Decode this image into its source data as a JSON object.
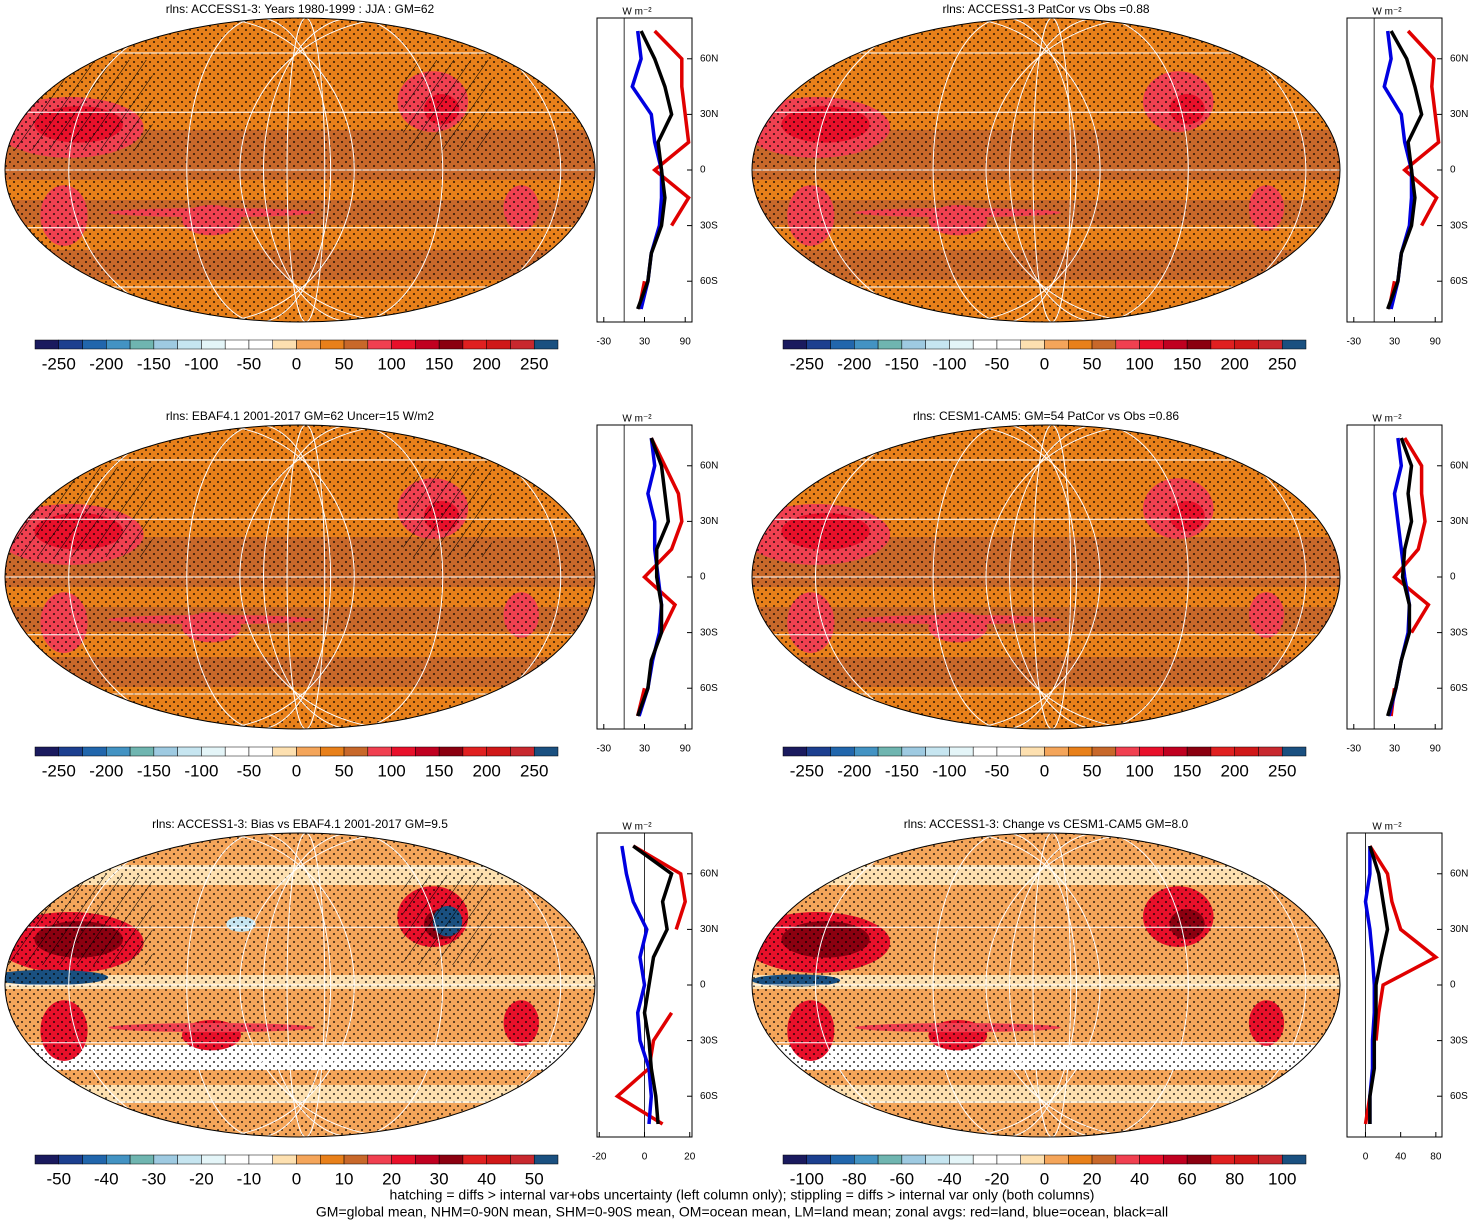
{
  "chart_data": [
    {
      "type": "map",
      "title": "rlns: ACCESS1-3: Years 1980-1999 : JJA : GM=62",
      "colorbar": {
        "clim": [
          -275,
          275
        ],
        "ticks": [
          -250,
          -200,
          -150,
          -100,
          -50,
          0,
          50,
          100,
          150,
          200,
          250
        ],
        "colors": [
          "#1a1a5e",
          "#1c3f8f",
          "#2166ac",
          "#4393c3",
          "#6fb5b0",
          "#9ecae1",
          "#c6e5f0",
          "#e4f5f8",
          "#ffffff",
          "#ffffff",
          "#fde0b0",
          "#f4a55a",
          "#e8801a",
          "#c8682a",
          "#f04050",
          "#e8102a",
          "#c00020",
          "#8b0010",
          "#e02020",
          "#d01818",
          "#c8282e",
          "#1a5080"
        ]
      },
      "zonal": {
        "type": "line",
        "label": "W m⁻²",
        "xlim": [
          -40,
          100
        ],
        "xticks": [
          -30,
          30,
          90
        ],
        "ylim": [
          -82,
          82
        ],
        "yticks": [
          {
            "value": 60,
            "label": "60N"
          },
          {
            "value": 30,
            "label": "30N"
          },
          0,
          {
            "value": -30,
            "label": "30S"
          },
          {
            "value": -60,
            "label": "60S"
          }
        ],
        "y": [
          -75,
          -60,
          -45,
          -30,
          -15,
          0,
          15,
          30,
          45,
          60,
          75
        ],
        "series": [
          {
            "color": "#e00000",
            "values": [
              22,
              30,
              null,
              70,
              95,
              45,
              95,
              90,
              85,
              85,
              45
            ]
          },
          {
            "color": "#0000e0",
            "values": [
              25,
              35,
              40,
              52,
              55,
              55,
              45,
              40,
              12,
              25,
              20
            ]
          },
          {
            "color": "#000000",
            "values": [
              20,
              35,
              40,
              55,
              60,
              55,
              50,
              70,
              60,
              45,
              25
            ]
          }
        ]
      }
    },
    {
      "type": "map",
      "title": "rlns: ACCESS1-3 PatCor vs Obs =0.88",
      "colorbar": {
        "clim": [
          -275,
          275
        ],
        "ticks": [
          -250,
          -200,
          -150,
          -100,
          -50,
          0,
          50,
          100,
          150,
          200,
          250
        ],
        "colors": [
          "#1a1a5e",
          "#1c3f8f",
          "#2166ac",
          "#4393c3",
          "#6fb5b0",
          "#9ecae1",
          "#c6e5f0",
          "#e4f5f8",
          "#ffffff",
          "#ffffff",
          "#fde0b0",
          "#f4a55a",
          "#e8801a",
          "#c8682a",
          "#f04050",
          "#e8102a",
          "#c00020",
          "#8b0010",
          "#e02020",
          "#d01818",
          "#c8282e",
          "#1a5080"
        ]
      },
      "zonal": {
        "type": "line",
        "label": "W m⁻²",
        "xlim": [
          -40,
          100
        ],
        "xticks": [
          -30,
          30,
          90
        ],
        "ylim": [
          -82,
          82
        ],
        "yticks": [
          {
            "value": 60,
            "label": "60N"
          },
          {
            "value": 30,
            "label": "30N"
          },
          0,
          {
            "value": -30,
            "label": "30S"
          },
          {
            "value": -60,
            "label": "60S"
          }
        ],
        "y": [
          -75,
          -60,
          -45,
          -30,
          -15,
          0,
          15,
          30,
          45,
          60,
          75
        ],
        "series": [
          {
            "color": "#e00000",
            "values": [
              22,
              30,
              null,
              70,
              92,
              45,
              95,
              90,
              85,
              88,
              50
            ]
          },
          {
            "color": "#0000e0",
            "values": [
              25,
              35,
              40,
              52,
              55,
              55,
              45,
              40,
              15,
              25,
              20
            ]
          },
          {
            "color": "#000000",
            "values": [
              20,
              35,
              40,
              55,
              60,
              55,
              50,
              70,
              60,
              48,
              25
            ]
          }
        ]
      }
    },
    {
      "type": "map",
      "title": "rlns: EBAF4.1 2001-2017 GM=62 Uncer=15 W/m2",
      "colorbar": {
        "clim": [
          -275,
          275
        ],
        "ticks": [
          -250,
          -200,
          -150,
          -100,
          -50,
          0,
          50,
          100,
          150,
          200,
          250
        ],
        "colors": [
          "#1a1a5e",
          "#1c3f8f",
          "#2166ac",
          "#4393c3",
          "#6fb5b0",
          "#9ecae1",
          "#c6e5f0",
          "#e4f5f8",
          "#ffffff",
          "#ffffff",
          "#fde0b0",
          "#f4a55a",
          "#e8801a",
          "#c8682a",
          "#f04050",
          "#e8102a",
          "#c00020",
          "#8b0010",
          "#e02020",
          "#d01818",
          "#c8282e",
          "#1a5080"
        ]
      },
      "zonal": {
        "type": "line",
        "label": "W m⁻²",
        "xlim": [
          -40,
          100
        ],
        "xticks": [
          -30,
          30,
          90
        ],
        "ylim": [
          -82,
          82
        ],
        "yticks": [
          {
            "value": 60,
            "label": "60N"
          },
          {
            "value": 30,
            "label": "30N"
          },
          0,
          {
            "value": -30,
            "label": "30S"
          },
          {
            "value": -60,
            "label": "60S"
          }
        ],
        "y": [
          -75,
          -60,
          -45,
          -30,
          -15,
          0,
          15,
          30,
          45,
          60,
          75
        ],
        "series": [
          {
            "color": "#e00000",
            "values": [
              20,
              30,
              null,
              55,
              75,
              30,
              70,
              85,
              80,
              60,
              40
            ]
          },
          {
            "color": "#0000e0",
            "values": [
              22,
              35,
              42,
              52,
              55,
              50,
              45,
              45,
              35,
              45,
              40
            ]
          },
          {
            "color": "#000000",
            "values": [
              20,
              35,
              40,
              55,
              55,
              48,
              48,
              65,
              60,
              55,
              40
            ]
          }
        ]
      }
    },
    {
      "type": "map",
      "title": "rlns: CESM1-CAM5: GM=54 PatCor vs Obs =0.86",
      "colorbar": {
        "clim": [
          -275,
          275
        ],
        "ticks": [
          -250,
          -200,
          -150,
          -100,
          -50,
          0,
          50,
          100,
          150,
          200,
          250
        ],
        "colors": [
          "#1a1a5e",
          "#1c3f8f",
          "#2166ac",
          "#4393c3",
          "#6fb5b0",
          "#9ecae1",
          "#c6e5f0",
          "#e4f5f8",
          "#ffffff",
          "#ffffff",
          "#fde0b0",
          "#f4a55a",
          "#e8801a",
          "#c8682a",
          "#f04050",
          "#e8102a",
          "#c00020",
          "#8b0010",
          "#e02020",
          "#d01818",
          "#c8282e",
          "#1a5080"
        ]
      },
      "zonal": {
        "type": "line",
        "label": "W m⁻²",
        "xlim": [
          -40,
          100
        ],
        "xticks": [
          -30,
          30,
          90
        ],
        "ylim": [
          -82,
          82
        ],
        "yticks": [
          {
            "value": 60,
            "label": "60N"
          },
          {
            "value": 30,
            "label": "30N"
          },
          0,
          {
            "value": -30,
            "label": "30S"
          },
          {
            "value": -60,
            "label": "60S"
          }
        ],
        "y": [
          -75,
          -60,
          -45,
          -30,
          -15,
          0,
          15,
          30,
          45,
          60,
          75
        ],
        "series": [
          {
            "color": "#e00000",
            "values": [
              25,
              30,
              null,
              55,
              80,
              30,
              65,
              75,
              70,
              70,
              45
            ]
          },
          {
            "color": "#0000e0",
            "values": [
              22,
              32,
              40,
              50,
              52,
              45,
              40,
              35,
              30,
              40,
              35
            ]
          },
          {
            "color": "#000000",
            "values": [
              20,
              32,
              40,
              52,
              52,
              42,
              45,
              55,
              50,
              55,
              40
            ]
          }
        ]
      }
    },
    {
      "type": "map",
      "title": "rlns: ACCESS1-3: Bias vs EBAF4.1 2001-2017 GM=9.5",
      "colorbar": {
        "clim": [
          -55,
          55
        ],
        "ticks": [
          -50,
          -40,
          -30,
          -20,
          -10,
          0,
          10,
          20,
          30,
          40,
          50
        ],
        "colors": [
          "#1a1a5e",
          "#1c3f8f",
          "#2166ac",
          "#4393c3",
          "#6fb5b0",
          "#9ecae1",
          "#c6e5f0",
          "#e4f5f8",
          "#ffffff",
          "#ffffff",
          "#fde0b0",
          "#f4a55a",
          "#e8801a",
          "#c8682a",
          "#f04050",
          "#e8102a",
          "#c00020",
          "#8b0010",
          "#e02020",
          "#d01818",
          "#c8282e",
          "#1a5080"
        ]
      },
      "zonal": {
        "type": "line",
        "label": "W m⁻²",
        "xlim": [
          -21,
          21
        ],
        "xticks": [
          -20,
          0,
          20
        ],
        "ylim": [
          -82,
          82
        ],
        "yticks": [
          {
            "value": 60,
            "label": "60N"
          },
          {
            "value": 30,
            "label": "30N"
          },
          0,
          {
            "value": -30,
            "label": "30S"
          },
          {
            "value": -60,
            "label": "60S"
          }
        ],
        "y": [
          -75,
          -60,
          -45,
          -30,
          -15,
          0,
          15,
          30,
          45,
          60,
          75
        ],
        "series": [
          {
            "color": "#e00000",
            "values": [
              8,
              -12,
              2,
              4,
              12,
              null,
              null,
              14,
              18,
              16,
              -5
            ]
          },
          {
            "color": "#0000e0",
            "values": [
              2,
              3,
              2,
              -2,
              -3,
              0,
              -2,
              1,
              -5,
              -8,
              -10
            ]
          },
          {
            "color": "#000000",
            "values": [
              6,
              5,
              3,
              2,
              0,
              2,
              4,
              10,
              8,
              12,
              -5
            ]
          }
        ]
      }
    },
    {
      "type": "map",
      "title": "rlns: ACCESS1-3: Change vs CESM1-CAM5 GM=8.0",
      "colorbar": {
        "clim": [
          -110,
          110
        ],
        "ticks": [
          -100,
          -80,
          -60,
          -40,
          -20,
          0,
          20,
          40,
          60,
          80,
          100
        ],
        "colors": [
          "#1a1a5e",
          "#1c3f8f",
          "#2166ac",
          "#4393c3",
          "#6fb5b0",
          "#9ecae1",
          "#c6e5f0",
          "#e4f5f8",
          "#ffffff",
          "#ffffff",
          "#fde0b0",
          "#f4a55a",
          "#e8801a",
          "#c8682a",
          "#f04050",
          "#e8102a",
          "#c00020",
          "#8b0010",
          "#e02020",
          "#d01818",
          "#c8282e",
          "#1a5080"
        ]
      },
      "zonal": {
        "type": "line",
        "label": "W m⁻²",
        "xlim": [
          -21,
          87
        ],
        "xticks": [
          0,
          40,
          80
        ],
        "ylim": [
          -82,
          82
        ],
        "yticks": [
          {
            "value": 60,
            "label": "60N"
          },
          {
            "value": 30,
            "label": "30N"
          },
          0,
          {
            "value": -30,
            "label": "30S"
          },
          {
            "value": -60,
            "label": "60S"
          }
        ],
        "y": [
          -75,
          -60,
          -45,
          -30,
          -15,
          0,
          15,
          30,
          45,
          60,
          75
        ],
        "series": [
          {
            "color": "#e00000",
            "values": [
              0,
              5,
              null,
              12,
              15,
              20,
              80,
              40,
              30,
              25,
              5
            ]
          },
          {
            "color": "#0000e0",
            "values": [
              5,
              5,
              8,
              8,
              10,
              10,
              8,
              5,
              0,
              5,
              5
            ]
          },
          {
            "color": "#000000",
            "values": [
              5,
              5,
              10,
              10,
              12,
              12,
              18,
              25,
              20,
              15,
              5
            ]
          }
        ]
      }
    }
  ],
  "notes": [
    "hatching = diffs > internal var+obs uncertainty (left column only); stippling = diffs > internal var only (both columns)",
    "GM=global mean, NHM=0-90N mean, SHM=0-90S mean, OM=ocean mean, LM=land mean; zonal avgs: red=land, blue=ocean, black=all"
  ]
}
